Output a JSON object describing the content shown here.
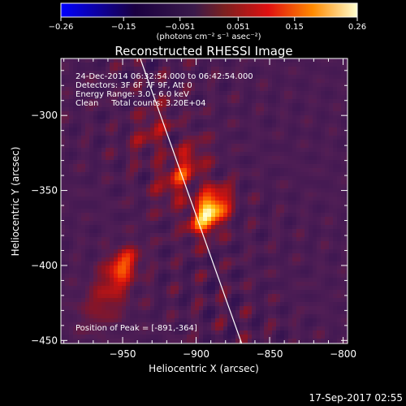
{
  "chart_data": {
    "type": "heatmap",
    "title": "Reconstructed RHESSI Image",
    "xlabel": "Heliocentric X (arcsec)",
    "ylabel": "Heliocentric Y (arcsec)",
    "xlim": [
      -992,
      -797
    ],
    "ylim": [
      -452,
      -262
    ],
    "x_ticks": [
      -950,
      -900,
      -850,
      -800
    ],
    "x_tick_labels": [
      "−950",
      "−900",
      "−850",
      "−800"
    ],
    "y_ticks": [
      -300,
      -350,
      -400,
      -450
    ],
    "y_tick_labels": [
      "−300",
      "−350",
      "−400",
      "−450"
    ],
    "colorbar": {
      "range": [
        -0.26,
        0.26
      ],
      "ticks": [
        -0.26,
        -0.15,
        -0.051,
        0.051,
        0.15,
        0.26
      ],
      "tick_labels": [
        "−0.26",
        "−0.15",
        "−0.051",
        "0.051",
        "0.15",
        "0.26"
      ],
      "unit_label": "(photons cm⁻² s⁻¹ asec⁻²)"
    },
    "limb_line": {
      "points": [
        [
          -938,
          -262
        ],
        [
          -869,
          -452
        ]
      ]
    },
    "sources": [
      {
        "x": -891,
        "y": -364,
        "amplitude": 0.26,
        "sigma_major": 11,
        "sigma_minor": 7,
        "angle_deg": -35
      },
      {
        "x": -910,
        "y": -338,
        "amplitude": 0.11,
        "sigma_major": 15,
        "sigma_minor": 8,
        "angle_deg": -35
      },
      {
        "x": -950,
        "y": -400,
        "amplitude": 0.13,
        "sigma_major": 9,
        "sigma_minor": 6,
        "angle_deg": -35
      },
      {
        "x": -960,
        "y": -420,
        "amplitude": 0.07,
        "sigma_major": 16,
        "sigma_minor": 9,
        "angle_deg": -35
      },
      {
        "x": -930,
        "y": -310,
        "amplitude": 0.06,
        "sigma_major": 14,
        "sigma_minor": 8,
        "angle_deg": -35
      }
    ],
    "peak": {
      "x": -891,
      "y": -364
    }
  },
  "info": {
    "line1": "24-Dec-2014 06:32:54.000 to 06:42:54.000",
    "line2": "Detectors: 3F 6F 7F 9F, Att 0",
    "line3": "Energy Range: 3.0 - 6.0 keV",
    "line4": "Clean     Total counts: 3.20E+04",
    "peak_text": "Position of Peak = [-891,-364]"
  },
  "footer": {
    "timestamp": "17-Sep-2017 02:55"
  }
}
